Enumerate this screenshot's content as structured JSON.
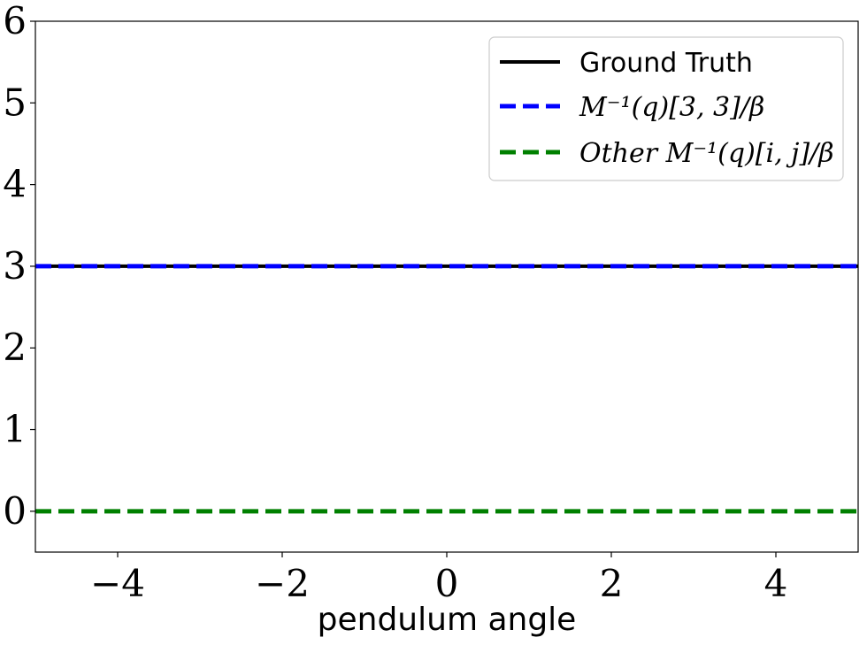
{
  "chart_data": {
    "type": "line",
    "title": "",
    "xlabel": "pendulum angle",
    "ylabel": "",
    "xlim": [
      -5,
      5
    ],
    "ylim": [
      -0.5,
      6
    ],
    "xticks": [
      -4,
      -2,
      0,
      2,
      4
    ],
    "xtick_labels": [
      "−4",
      "−2",
      "0",
      "2",
      "4"
    ],
    "yticks": [
      0,
      1,
      2,
      3,
      4,
      5,
      6
    ],
    "ytick_labels": [
      "0",
      "1",
      "2",
      "3",
      "4",
      "5",
      "6"
    ],
    "grid": false,
    "legend_position": "top-right",
    "series": [
      {
        "name": "Ground Truth",
        "color": "#000000",
        "style": "solid",
        "x": [
          -5,
          5
        ],
        "y": [
          3,
          3
        ]
      },
      {
        "name": "M⁻¹(q)[3, 3]/β",
        "color": "#0000ff",
        "style": "dashed",
        "x": [
          -5,
          5
        ],
        "y": [
          3,
          3
        ]
      },
      {
        "name": "Other M⁻¹(q)[i, j]/β",
        "color": "#008000",
        "style": "dashed",
        "x": [
          -5,
          5
        ],
        "y": [
          0,
          0
        ]
      }
    ]
  }
}
